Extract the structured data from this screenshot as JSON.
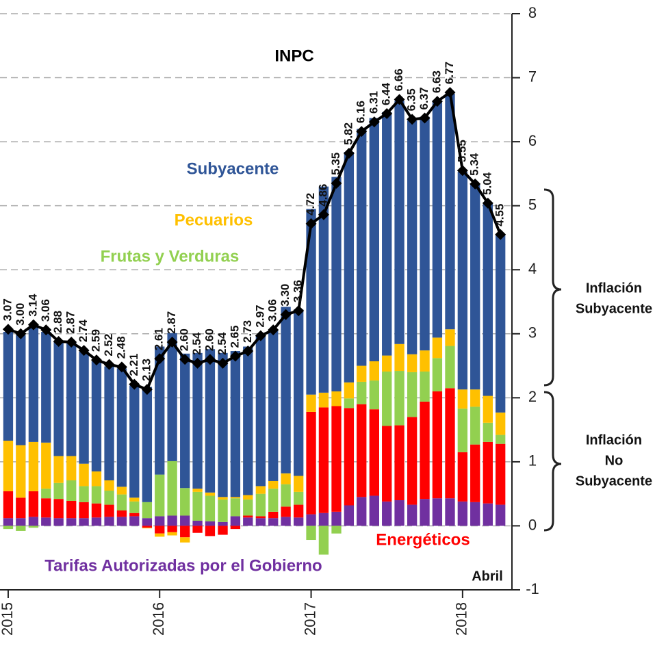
{
  "chart_data": {
    "type": "stacked-bar-line",
    "x": [
      2015.0,
      2015.083,
      2015.167,
      2015.25,
      2015.333,
      2015.417,
      2015.5,
      2015.583,
      2015.667,
      2015.75,
      2015.833,
      2015.917,
      2016.0,
      2016.083,
      2016.167,
      2016.25,
      2016.333,
      2016.417,
      2016.5,
      2016.583,
      2016.667,
      2016.75,
      2016.833,
      2016.917,
      2017.0,
      2017.083,
      2017.167,
      2017.25,
      2017.333,
      2017.417,
      2017.5,
      2017.583,
      2017.667,
      2017.75,
      2017.833,
      2017.917,
      2018.0,
      2018.083,
      2018.167,
      2018.25
    ],
    "series": [
      {
        "name": "Tarifas Autorizadas por el Gobierno",
        "color": "#7030a0",
        "values": [
          0.12,
          0.12,
          0.14,
          0.13,
          0.12,
          0.12,
          0.12,
          0.13,
          0.14,
          0.14,
          0.15,
          0.12,
          0.15,
          0.16,
          0.16,
          0.08,
          0.07,
          0.06,
          0.15,
          0.13,
          0.12,
          0.12,
          0.14,
          0.13,
          0.18,
          0.2,
          0.22,
          0.32,
          0.45,
          0.47,
          0.38,
          0.4,
          0.33,
          0.42,
          0.43,
          0.43,
          0.38,
          0.37,
          0.35,
          0.33
        ]
      },
      {
        "name": "Energéticos",
        "color": "#ff0000",
        "values": [
          0.42,
          0.32,
          0.4,
          0.3,
          0.3,
          0.27,
          0.25,
          0.22,
          0.19,
          0.1,
          0.05,
          -0.03,
          -0.12,
          -0.1,
          -0.18,
          -0.11,
          -0.16,
          -0.14,
          -0.05,
          0.03,
          0.03,
          0.1,
          0.16,
          0.2,
          1.6,
          1.65,
          1.65,
          1.52,
          1.45,
          1.35,
          1.18,
          1.17,
          1.37,
          1.52,
          1.67,
          1.72,
          0.77,
          0.9,
          0.96,
          0.95
        ]
      },
      {
        "name": "Frutas y Verduras",
        "color": "#92d050",
        "values": [
          -0.05,
          -0.08,
          -0.03,
          0.15,
          0.25,
          0.32,
          0.25,
          0.27,
          0.22,
          0.25,
          0.18,
          0.25,
          0.65,
          0.85,
          0.43,
          0.45,
          0.4,
          0.35,
          0.28,
          0.25,
          0.35,
          0.36,
          0.35,
          0.2,
          -0.22,
          -0.45,
          -0.12,
          0.15,
          0.35,
          0.45,
          0.85,
          0.85,
          0.7,
          0.47,
          0.52,
          0.66,
          0.68,
          0.59,
          0.3,
          0.14
        ]
      },
      {
        "name": "Pecuarios",
        "color": "#ffc000",
        "values": [
          0.79,
          0.82,
          0.77,
          0.72,
          0.42,
          0.38,
          0.35,
          0.23,
          0.16,
          0.12,
          0.06,
          -0.01,
          -0.05,
          -0.05,
          -0.08,
          0.05,
          0.05,
          0.04,
          0.02,
          0.07,
          0.12,
          0.12,
          0.17,
          0.25,
          0.27,
          0.23,
          0.23,
          0.25,
          0.25,
          0.3,
          0.25,
          0.42,
          0.28,
          0.33,
          0.32,
          0.26,
          0.3,
          0.27,
          0.42,
          0.35
        ]
      },
      {
        "name": "Subyacente",
        "color": "#2f5597",
        "values": [
          1.7,
          1.72,
          1.8,
          1.73,
          1.8,
          1.78,
          1.75,
          1.72,
          1.78,
          1.85,
          1.75,
          1.8,
          2.0,
          2.0,
          2.1,
          2.12,
          2.24,
          2.25,
          2.28,
          2.32,
          2.35,
          2.35,
          2.6,
          2.6,
          2.9,
          3.22,
          3.35,
          3.6,
          3.7,
          3.8,
          3.8,
          3.8,
          3.65,
          3.65,
          3.68,
          3.68,
          3.4,
          3.2,
          3.0,
          2.78
        ]
      }
    ],
    "line": {
      "name": "INPC",
      "color": "#000000",
      "values": [
        3.07,
        3.0,
        3.14,
        3.06,
        2.88,
        2.87,
        2.74,
        2.59,
        2.52,
        2.48,
        2.21,
        2.13,
        2.61,
        2.87,
        2.6,
        2.54,
        2.6,
        2.54,
        2.65,
        2.73,
        2.97,
        3.06,
        3.3,
        3.36,
        4.72,
        4.86,
        5.35,
        5.82,
        6.16,
        6.31,
        6.44,
        6.66,
        6.35,
        6.37,
        6.63,
        6.77,
        5.55,
        5.34,
        5.04,
        4.55
      ],
      "value_labels": [
        "3.07",
        "3.00",
        "3.14",
        "3.06",
        "2.88",
        "2.87",
        "2.74",
        "2.59",
        "2.52",
        "2.48",
        "2.21",
        "2.13",
        "2.61",
        "2.87",
        "2.60",
        "2.54",
        "2.60",
        "2.54",
        "2.65",
        "2.73",
        "2.97",
        "3.06",
        "3.30",
        "3.36",
        "4.72",
        "4.86",
        "5.35",
        "5.82",
        "6.16",
        "6.31",
        "6.44",
        "6.66",
        "6.35",
        "6.37",
        "6.63",
        "6.77",
        "5.55",
        "5.34",
        "5.04",
        "4.55"
      ]
    },
    "xlim": [
      2014.946,
      2018.326
    ],
    "xticks": [
      2015,
      2016,
      2017,
      2018
    ],
    "ylim": [
      -1,
      8
    ],
    "yticks": [
      -1,
      0,
      1,
      2,
      3,
      4,
      5,
      6,
      7,
      8
    ],
    "grid": true,
    "annotations": [
      "Abril"
    ],
    "brace_labels": [
      [
        "Inflación",
        "Subyacente"
      ],
      [
        "Inflación",
        "No",
        "Subyacente"
      ]
    ]
  }
}
